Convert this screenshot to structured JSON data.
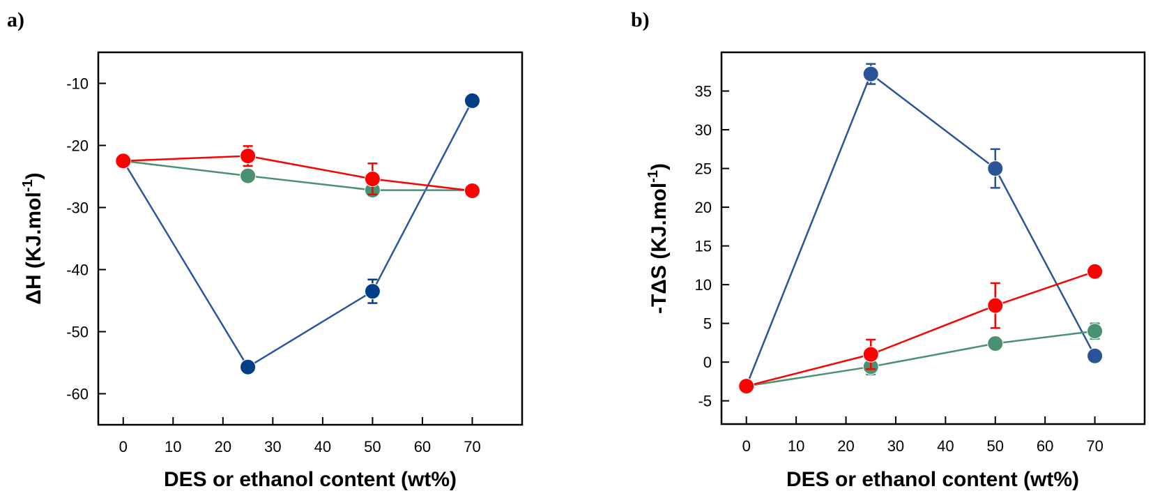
{
  "chart_data": [
    {
      "panel_label": "a)",
      "type": "line",
      "title": "",
      "xlabel": "DES or ethanol content (wt%)",
      "ylabel_main": "ΔH (KJ.mol",
      "ylabel_sup": "-1",
      "ylabel_close": ")",
      "xlim": [
        -5,
        80
      ],
      "ylim": [
        -65,
        -5
      ],
      "xticks": [
        0,
        10,
        20,
        30,
        40,
        50,
        60,
        70
      ],
      "yticks": [
        -10,
        -20,
        -30,
        -40,
        -50,
        -60
      ],
      "grid": false,
      "legend": "none",
      "series": [
        {
          "name": "blue series",
          "color": "#003f87",
          "line_color": "#2b55a0",
          "x": [
            0,
            25,
            50,
            70
          ],
          "y": [
            -22.5,
            -55.7,
            -43.5,
            -12.8
          ],
          "err": [
            0,
            0.8,
            1.9,
            0
          ]
        },
        {
          "name": "green series",
          "color": "#4a9172",
          "line_color": "#4a9172",
          "x": [
            0,
            25,
            50,
            70
          ],
          "y": [
            -22.5,
            -24.9,
            -27.2,
            -27.2
          ],
          "err": [
            0,
            0,
            0,
            0.5
          ]
        },
        {
          "name": "red series",
          "color": "#ff0000",
          "line_color": "#ff0000",
          "x": [
            0,
            25,
            50,
            70
          ],
          "y": [
            -22.5,
            -21.7,
            -25.4,
            -27.3
          ],
          "err": [
            0,
            1.6,
            2.5,
            0.6
          ]
        }
      ]
    },
    {
      "panel_label": "b)",
      "type": "line",
      "title": "",
      "xlabel": "DES or ethanol content (wt%)",
      "ylabel_main": "-TΔS (KJ.mol",
      "ylabel_sup": "-1",
      "ylabel_close": ")",
      "xlim": [
        -5,
        80
      ],
      "ylim": [
        -8,
        40
      ],
      "xticks": [
        0,
        10,
        20,
        30,
        40,
        50,
        60,
        70
      ],
      "yticks": [
        -5,
        0,
        5,
        10,
        15,
        20,
        25,
        30,
        35
      ],
      "grid": false,
      "legend": "none",
      "series": [
        {
          "name": "blue series",
          "color": "#2b5397",
          "line_color": "#2b5397",
          "x": [
            0,
            25,
            50,
            70
          ],
          "y": [
            -3.1,
            37.2,
            25.0,
            0.8
          ],
          "err": [
            0,
            1.3,
            2.5,
            0
          ]
        },
        {
          "name": "green series",
          "color": "#4a9172",
          "line_color": "#4a9172",
          "x": [
            0,
            25,
            50,
            70
          ],
          "y": [
            -3.1,
            -0.6,
            2.4,
            4.0
          ],
          "err": [
            0,
            1.0,
            0,
            1.0
          ]
        },
        {
          "name": "red series",
          "color": "#ff0000",
          "line_color": "#ff0000",
          "x": [
            0,
            25,
            50,
            70
          ],
          "y": [
            -3.1,
            1.0,
            7.3,
            11.7
          ],
          "err": [
            0,
            1.9,
            2.9,
            0
          ]
        }
      ]
    }
  ]
}
